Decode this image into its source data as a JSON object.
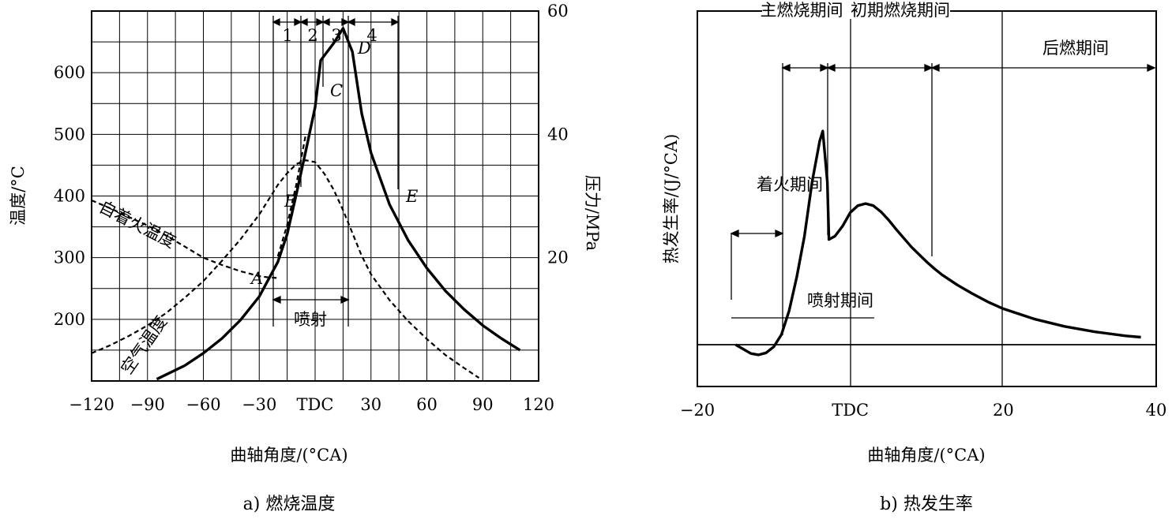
{
  "chart_data": [
    {
      "type": "line",
      "caption": "a) 燃烧温度",
      "xlabel": "曲轴角度/(°CA)",
      "ylabel": "温度/°C",
      "y2label": "压力/MPa",
      "xlim": [
        -120,
        120
      ],
      "ylim": [
        100,
        700
      ],
      "y2lim": [
        0,
        60
      ],
      "x_ticks": [
        -120,
        -90,
        -60,
        -30,
        0,
        30,
        60,
        90,
        120
      ],
      "x_tick_labels": [
        "−120",
        "−90",
        "−60",
        "−30",
        "TDC",
        "30",
        "60",
        "90",
        "120"
      ],
      "y_ticks": [
        200,
        300,
        400,
        500,
        600
      ],
      "y_tick_labels": [
        "200",
        "300",
        "400",
        "500",
        "600"
      ],
      "y2_ticks": [
        20,
        40,
        60
      ],
      "y2_tick_labels": [
        "20",
        "40",
        "60"
      ],
      "grid": true,
      "series": [
        {
          "name": "",
          "style": "solid",
          "axis": "right",
          "x": [
            -85,
            -70,
            -60,
            -50,
            -40,
            -30,
            -20,
            -15,
            -10,
            -5,
            0,
            3,
            10,
            15,
            20,
            25,
            30,
            40,
            50,
            60,
            70,
            80,
            90,
            100,
            110
          ],
          "y": [
            0.3,
            2.5,
            4.5,
            6.9,
            9.9,
            13.7,
            19.3,
            23.8,
            30.4,
            37.3,
            44.4,
            52.0,
            54.8,
            57.2,
            53.4,
            43.4,
            37.0,
            28.6,
            22.8,
            18.3,
            14.6,
            11.6,
            9.0,
            6.9,
            5.0
          ]
        },
        {
          "name": "",
          "style": "dashed",
          "axis": "left",
          "x": [
            -120,
            -110,
            -100,
            -90,
            -80,
            -70,
            -60,
            -50,
            -40,
            -30,
            -20,
            -15,
            -10,
            -5,
            0,
            5,
            10,
            15,
            20,
            25,
            30,
            40,
            50,
            60,
            70,
            80,
            88
          ],
          "y": [
            145,
            158,
            173,
            190,
            210,
            235,
            262,
            295,
            330,
            370,
            418,
            437,
            452,
            458,
            455,
            436,
            410,
            377,
            340,
            303,
            273,
            231,
            197,
            168,
            142,
            121,
            105
          ]
        },
        {
          "name": "",
          "style": "dashed",
          "axis": "left",
          "x": [
            -120,
            -110,
            -100,
            -90,
            -80,
            -70,
            -60,
            -50,
            -40,
            -30,
            -25,
            -20
          ],
          "y": [
            393,
            380,
            366,
            352,
            336,
            318,
            300,
            288,
            278,
            270,
            268,
            267
          ]
        },
        {
          "name": "",
          "style": "dashed",
          "axis": "left",
          "x": [
            -20,
            -15,
            -10,
            -5
          ],
          "y": [
            302,
            353,
            420,
            500
          ]
        }
      ],
      "annotations": [
        {
          "text": "自着火温度",
          "x": -105,
          "y": 347
        },
        {
          "text": "空气温度",
          "x": -75,
          "y": 195
        },
        {
          "text": "喷射",
          "x": -10,
          "y": 245
        },
        {
          "text": "A",
          "x": -27,
          "y": 300
        },
        {
          "text": "B",
          "x": -11,
          "y": 425
        },
        {
          "text": "C",
          "x": 8,
          "y": 565
        },
        {
          "text": "D",
          "x": 19,
          "y": 655
        },
        {
          "text": "E",
          "x": 38,
          "y": 425
        }
      ],
      "phase_labels": [
        "1",
        "2",
        "3",
        "4"
      ],
      "phase_bounds_deg": [
        -20,
        -6,
        1,
        14,
        40
      ]
    },
    {
      "type": "line",
      "caption": "b) 热发生率",
      "xlabel": "曲轴角度/(°CA)",
      "ylabel": "热发生率/(J/°CA)",
      "xlim": [
        -20,
        40
      ],
      "x_ticks": [
        -20,
        0,
        20,
        40
      ],
      "x_tick_labels": [
        "−20",
        "TDC",
        "20",
        "40"
      ],
      "grid": false,
      "series": [
        {
          "name": "",
          "style": "solid",
          "x": [
            -15,
            -13,
            -12,
            -11,
            -10,
            -9,
            -8,
            -7,
            -6,
            -5,
            -4,
            -3.6,
            -3,
            -2.8,
            -2,
            -1,
            0,
            1,
            2,
            3,
            4,
            5,
            6,
            8,
            10,
            11,
            12,
            14,
            16,
            18,
            20,
            24,
            28,
            32,
            36,
            38
          ],
          "y": [
            0.0,
            -1.3,
            -1.5,
            -1.2,
            -0.3,
            1.5,
            5.0,
            10.0,
            16.0,
            24.0,
            30.0,
            31.5,
            24.0,
            15.5,
            16.0,
            17.5,
            19.5,
            20.5,
            20.8,
            20.5,
            19.6,
            18.4,
            17.0,
            14.4,
            12.2,
            11.2,
            10.3,
            8.8,
            7.5,
            6.3,
            5.3,
            3.8,
            2.7,
            1.9,
            1.3,
            1.1
          ]
        }
      ],
      "phase_labels": [
        "着火期间",
        "主燃烧期间",
        "初期燃烧期间",
        "后燃期间"
      ],
      "injection_label": "喷射期间"
    }
  ]
}
